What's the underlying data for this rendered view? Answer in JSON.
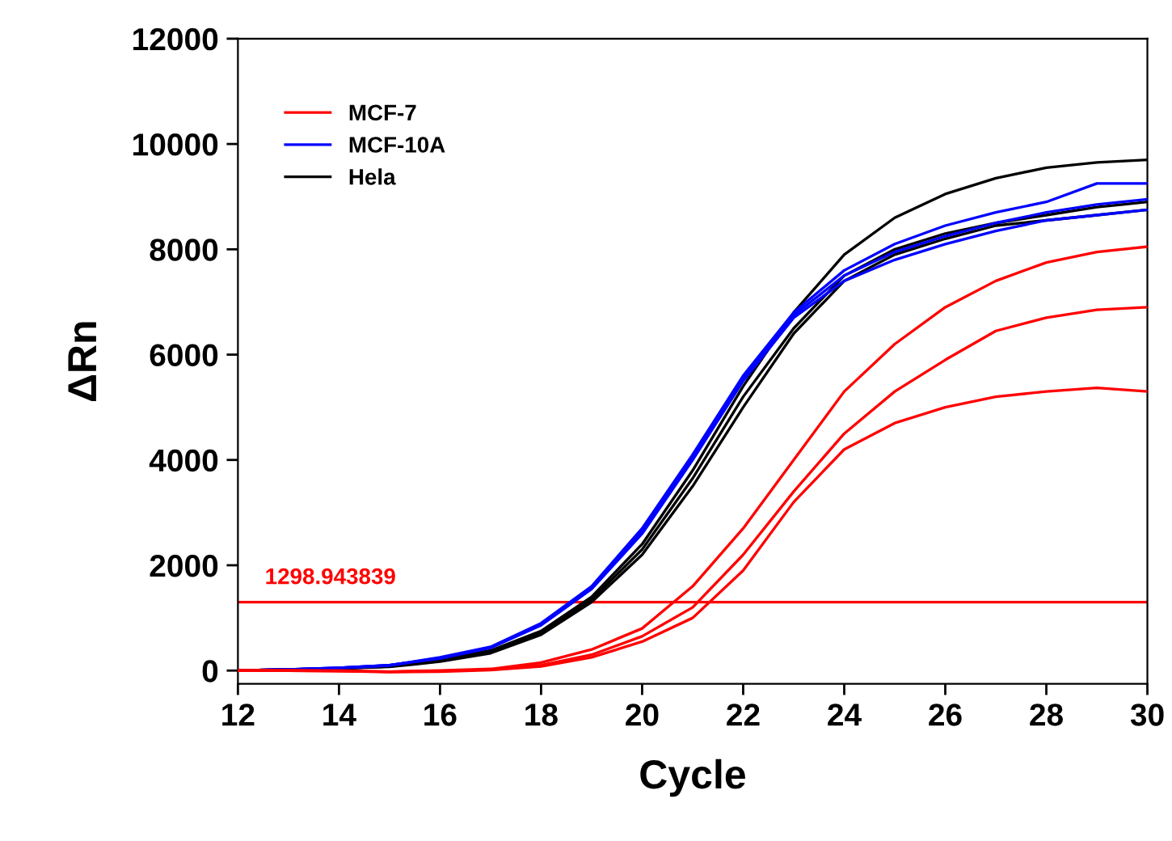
{
  "chart_data": {
    "type": "line",
    "xlabel": "Cycle",
    "ylabel": "ΔRn",
    "x": [
      12,
      13,
      14,
      15,
      16,
      17,
      18,
      19,
      20,
      21,
      22,
      23,
      24,
      25,
      26,
      27,
      28,
      29,
      30
    ],
    "xlim": [
      12,
      30
    ],
    "xticks": [
      12,
      14,
      16,
      18,
      20,
      22,
      24,
      26,
      28,
      30
    ],
    "ylim": [
      -250,
      12000
    ],
    "yticks": [
      0,
      2000,
      4000,
      6000,
      8000,
      10000,
      12000
    ],
    "legend": "top left",
    "grid": false,
    "ref_lines": [
      {
        "axis": "y",
        "value": 1298.943839,
        "label": "1298.943839",
        "color": "#ff0000"
      }
    ],
    "series": [
      {
        "name": "MCF-7",
        "color": "#ff0000",
        "values": [
          0,
          0,
          0,
          -20,
          0,
          30,
          150,
          400,
          800,
          1600,
          2700,
          4000,
          5300,
          6200,
          6900,
          7400,
          7750,
          7950,
          8050
        ]
      },
      {
        "color": "#ff0000",
        "values": [
          0,
          0,
          -10,
          -20,
          -10,
          20,
          100,
          300,
          650,
          1200,
          2200,
          3400,
          4500,
          5300,
          5900,
          6450,
          6700,
          6850,
          6900
        ]
      },
      {
        "color": "#ff0000",
        "values": [
          0,
          0,
          -10,
          -30,
          -20,
          10,
          80,
          250,
          550,
          1000,
          1900,
          3200,
          4200,
          4700,
          5000,
          5200,
          5300,
          5370,
          5300
        ]
      },
      {
        "name": "MCF-10A",
        "color": "#0000ff",
        "values": [
          0,
          20,
          50,
          100,
          250,
          450,
          900,
          1600,
          2700,
          4100,
          5600,
          6800,
          7600,
          8100,
          8450,
          8700,
          8900,
          9250,
          9250
        ]
      },
      {
        "color": "#0000ff",
        "values": [
          0,
          20,
          50,
          100,
          240,
          440,
          880,
          1580,
          2650,
          4050,
          5550,
          6750,
          7500,
          7950,
          8250,
          8500,
          8700,
          8850,
          8950
        ]
      },
      {
        "color": "#0000ff",
        "values": [
          0,
          20,
          50,
          100,
          230,
          430,
          860,
          1550,
          2600,
          4000,
          5500,
          6700,
          7400,
          7800,
          8100,
          8350,
          8550,
          8650,
          8750
        ]
      },
      {
        "name": "Hela",
        "color": "#000000",
        "values": [
          0,
          20,
          40,
          80,
          200,
          380,
          750,
          1400,
          2400,
          3800,
          5400,
          6800,
          7900,
          8600,
          9050,
          9350,
          9550,
          9650,
          9700
        ]
      },
      {
        "color": "#000000",
        "values": [
          0,
          20,
          40,
          80,
          190,
          360,
          720,
          1350,
          2300,
          3650,
          5200,
          6500,
          7500,
          8000,
          8300,
          8500,
          8650,
          8800,
          8900
        ]
      },
      {
        "color": "#000000",
        "values": [
          0,
          20,
          40,
          70,
          170,
          330,
          680,
          1300,
          2200,
          3500,
          5000,
          6400,
          7400,
          7900,
          8200,
          8450,
          8550,
          8650,
          8750
        ]
      }
    ]
  }
}
